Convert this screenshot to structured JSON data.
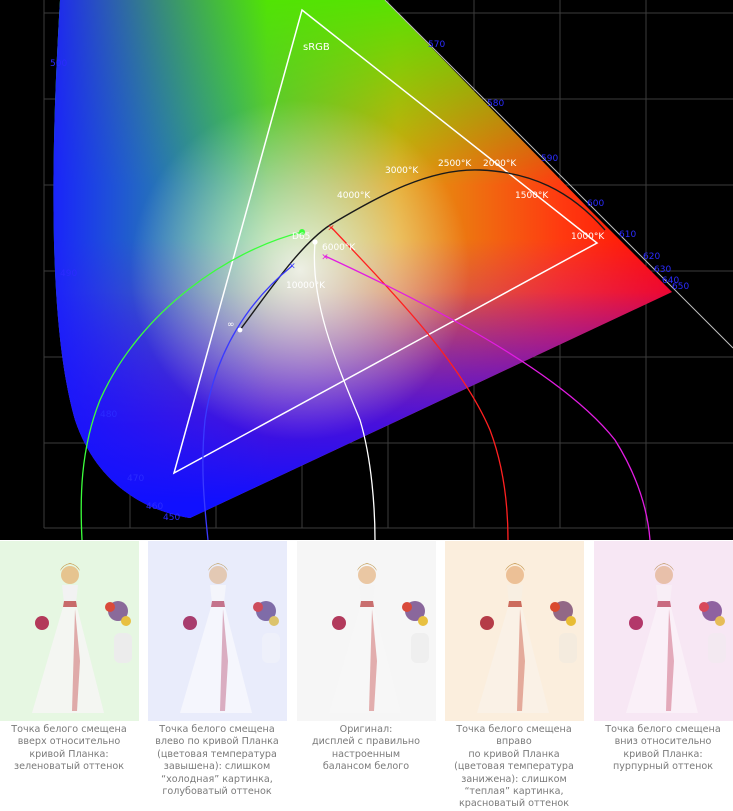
{
  "diagram": {
    "gamut_label": "sRGB",
    "white_point_label": "D65",
    "infinity_label": "∞",
    "wavelength_labels": [
      "500",
      "570",
      "580",
      "590",
      "600",
      "610",
      "620",
      "630",
      "640",
      "650",
      "490",
      "480",
      "470",
      "460",
      "450"
    ],
    "temperature_labels": [
      "3000°K",
      "2500°K",
      "2000°K",
      "4000°K",
      "1500°K",
      "1000°K",
      "6000°K",
      "10000°K"
    ],
    "colors": {
      "green_curve": "#3cff3c",
      "blue_curve": "#3a3aff",
      "white_curve": "#ffffff",
      "red_curve": "#ff2020",
      "magenta_curve": "#e21ce2",
      "wavelength_text": "#2b2bff",
      "grid": "#3c3c3c"
    }
  },
  "panels": [
    {
      "tint": "#e6f7e2",
      "caption": "Точка белого смещена\nвверх относительно\nкривой Планка:\nзеленоватый оттенок"
    },
    {
      "tint": "#e9ecfb",
      "caption": "Точка белого смещена\nвлево по кривой Планка\n(цветовая температура\nзавышена): слишком\n“холодная” картинка,\nголубоватый оттенок"
    },
    {
      "tint": "#f6f6f6",
      "caption": "Оригинал:\nдисплей с правильно\nнастроенным\nбалансом белого"
    },
    {
      "tint": "#fbeedd",
      "caption": "Точка белого смещена вправо\nпо кривой Планка\n(цветовая температура\nзанижена): слишком\n“теплая” картинка,\nкрасноватый оттенок"
    },
    {
      "tint": "#f7e7f4",
      "caption": "Точка белого смещена\nвниз относительно\nкривой Планка:\nпурпурный оттенок"
    }
  ]
}
